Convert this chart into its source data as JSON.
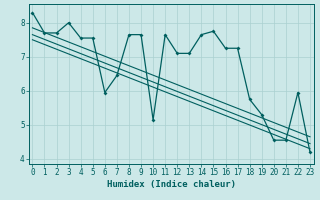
{
  "title": "",
  "xlabel": "Humidex (Indice chaleur)",
  "bg_color": "#cce8e8",
  "plot_bg_color": "#cce8e8",
  "line_color": "#005f5f",
  "grid_color": "#aad0d0",
  "spine_color": "#005f5f",
  "x_values": [
    0,
    1,
    2,
    3,
    4,
    5,
    6,
    7,
    8,
    9,
    10,
    11,
    12,
    13,
    14,
    15,
    16,
    17,
    18,
    19,
    20,
    21,
    22,
    23
  ],
  "y_values": [
    8.3,
    7.7,
    7.7,
    8.0,
    7.55,
    7.55,
    5.95,
    6.45,
    7.65,
    7.65,
    5.15,
    7.65,
    7.1,
    7.1,
    7.65,
    7.75,
    7.25,
    7.25,
    5.75,
    5.3,
    4.55,
    4.55,
    5.95,
    4.2
  ],
  "trend1_x": [
    0,
    23
  ],
  "trend1_y": [
    7.85,
    4.65
  ],
  "trend2_x": [
    0,
    23
  ],
  "trend2_y": [
    7.65,
    4.45
  ],
  "trend3_x": [
    0,
    23
  ],
  "trend3_y": [
    7.5,
    4.3
  ],
  "xlim": [
    -0.3,
    23.3
  ],
  "ylim": [
    3.85,
    8.55
  ],
  "yticks": [
    4,
    5,
    6,
    7,
    8
  ],
  "xticks": [
    0,
    1,
    2,
    3,
    4,
    5,
    6,
    7,
    8,
    9,
    10,
    11,
    12,
    13,
    14,
    15,
    16,
    17,
    18,
    19,
    20,
    21,
    22,
    23
  ],
  "tick_fontsize": 5.5,
  "xlabel_fontsize": 6.5
}
